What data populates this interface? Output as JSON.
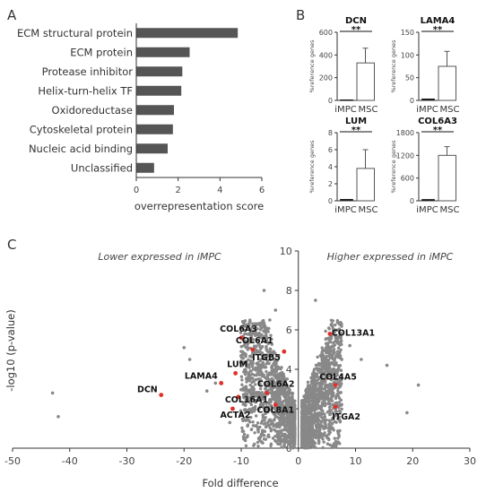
{
  "panels": {
    "a": "A",
    "b": "B",
    "c": "C"
  },
  "chart_data": [
    {
      "type": "bar",
      "orientation": "horizontal",
      "categories": [
        "ECM structural protein",
        "ECM protein",
        "Protease inhibitor",
        "Helix-turn-helix TF",
        "Oxidoreductase",
        "Cytoskeletal protein",
        "Nucleic acid binding",
        "Unclassified"
      ],
      "values": [
        4.85,
        2.55,
        2.2,
        2.15,
        1.8,
        1.75,
        1.5,
        0.85
      ],
      "xlabel": "overrepresentation score",
      "xlim": [
        0,
        6
      ],
      "xticks": [
        "0",
        "2",
        "4",
        "6"
      ],
      "color": "#555555"
    },
    {
      "type": "bar",
      "subplots": [
        {
          "title": "DCN",
          "ylabel": "%reference genes",
          "ylim": [
            0,
            600
          ],
          "yticks": [
            "0",
            "200",
            "400",
            "600"
          ],
          "categories": [
            "iMPC",
            "MSC"
          ],
          "values": [
            0,
            330
          ],
          "errors": [
            0,
            130
          ],
          "significance": "**"
        },
        {
          "title": "LAMA4",
          "ylabel": "%reference genes",
          "ylim": [
            0,
            150
          ],
          "yticks": [
            "0",
            "50",
            "100",
            "150"
          ],
          "categories": [
            "iMPC",
            "MSC"
          ],
          "values": [
            2,
            75
          ],
          "errors": [
            0,
            33
          ],
          "significance": "**"
        },
        {
          "title": "LUM",
          "ylabel": "%reference genes",
          "ylim": [
            0,
            8
          ],
          "yticks": [
            "0",
            "2",
            "4",
            "6",
            "8"
          ],
          "categories": [
            "iMPC",
            "MSC"
          ],
          "values": [
            0.1,
            3.8
          ],
          "errors": [
            0,
            2.2
          ],
          "significance": "**"
        },
        {
          "title": "COL6A3",
          "ylabel": "%reference genes",
          "ylim": [
            0,
            1800
          ],
          "yticks": [
            "0",
            "600",
            "1200",
            "1800"
          ],
          "categories": [
            "iMPC",
            "MSC"
          ],
          "values": [
            20,
            1200
          ],
          "errors": [
            0,
            230
          ],
          "significance": "**"
        }
      ]
    },
    {
      "type": "scatter",
      "xlabel": "Fold difference",
      "ylabel": "-log10 (p-value)",
      "xlim": [
        -50,
        30
      ],
      "ylim": [
        0,
        10
      ],
      "xticks": [
        "-50",
        "-40",
        "-30",
        "-20",
        "-10",
        "0",
        "10",
        "20",
        "30"
      ],
      "yticks": [
        "0",
        "2",
        "4",
        "6",
        "8",
        "10"
      ],
      "annotations": {
        "left": "Lower expressed in iMPC",
        "right": "Higher expressed in iMPC"
      },
      "point_color": "#888888",
      "highlight_color": "#e0302a",
      "outliers": [
        {
          "x": -43,
          "y": 2.8
        },
        {
          "x": -42,
          "y": 1.6
        },
        {
          "x": -20,
          "y": 5.1
        },
        {
          "x": -19,
          "y": 4.5
        },
        {
          "x": -16,
          "y": 2.9
        },
        {
          "x": -14.5,
          "y": 3.3
        },
        {
          "x": -12,
          "y": 1.3
        },
        {
          "x": -6,
          "y": 8.0
        },
        {
          "x": -5,
          "y": 6.5
        },
        {
          "x": -4,
          "y": 7.0
        },
        {
          "x": 9,
          "y": 5.2
        },
        {
          "x": 11,
          "y": 4.5
        },
        {
          "x": 15.5,
          "y": 4.2
        },
        {
          "x": 19,
          "y": 1.8
        },
        {
          "x": 21,
          "y": 3.2
        },
        {
          "x": 3,
          "y": 7.5
        }
      ],
      "highlighted_genes": [
        {
          "label": "DCN",
          "x": -24,
          "y": 2.7
        },
        {
          "label": "COL6A3",
          "x": -10,
          "y": 5.6
        },
        {
          "label": "COL6A1",
          "x": -8,
          "y": 5.0
        },
        {
          "label": "ITGB5",
          "x": -2.5,
          "y": 4.9
        },
        {
          "label": "LUM",
          "x": -11,
          "y": 3.8
        },
        {
          "label": "LAMA4",
          "x": -13.5,
          "y": 3.3
        },
        {
          "label": "COL16A1",
          "x": -10.5,
          "y": 2.6
        },
        {
          "label": "COL6A2",
          "x": -5.5,
          "y": 2.8
        },
        {
          "label": "ACTA2",
          "x": -11.5,
          "y": 2.0
        },
        {
          "label": "COL8A1",
          "x": -4,
          "y": 2.2
        },
        {
          "label": "COL13A1",
          "x": 5.5,
          "y": 5.8
        },
        {
          "label": "COL4A5",
          "x": 6.5,
          "y": 3.2
        },
        {
          "label": "ITGA2",
          "x": 6.5,
          "y": 2.1
        }
      ],
      "label_positions": [
        {
          "label": "DCN",
          "anchor": "end",
          "dx": -4,
          "dy": -3
        },
        {
          "label": "COL6A3",
          "anchor": "middle",
          "dx": -3,
          "dy": -7
        },
        {
          "label": "COL6A1",
          "anchor": "middle",
          "dx": 2,
          "dy": -7
        },
        {
          "label": "ITGB5",
          "anchor": "end",
          "dx": -4,
          "dy": 10
        },
        {
          "label": "LUM",
          "anchor": "middle",
          "dx": 2,
          "dy": -7
        },
        {
          "label": "LAMA4",
          "anchor": "end",
          "dx": -4,
          "dy": -5
        },
        {
          "label": "COL16A1",
          "anchor": "start",
          "dx": -15,
          "dy": 6
        },
        {
          "label": "COL6A2",
          "anchor": "middle",
          "dx": 10,
          "dy": -7
        },
        {
          "label": "ACTA2",
          "anchor": "start",
          "dx": -14,
          "dy": 10
        },
        {
          "label": "COL8A1",
          "anchor": "middle",
          "dx": 0,
          "dy": 9
        },
        {
          "label": "COL13A1",
          "anchor": "start",
          "dx": 2,
          "dy": 2
        },
        {
          "label": "COL4A5",
          "anchor": "start",
          "dx": -18,
          "dy": -6
        },
        {
          "label": "ITGA2",
          "anchor": "start",
          "dx": -4,
          "dy": 14
        }
      ]
    }
  ]
}
